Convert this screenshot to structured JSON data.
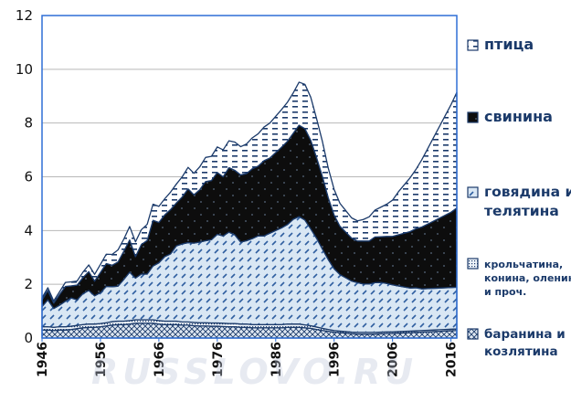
{
  "watermark": "RUSSLOVO.RU",
  "colors": {
    "frame": "#2f6fd6",
    "grid": "#b8b8b8",
    "outline": "#1b3a6a",
    "pork": "#0d0d0d",
    "poultry_bg": "#ffffff",
    "beef_bg": "#d9e7f4",
    "other_bg": "#eef4fa",
    "lamb_bg": "#dfe8f2"
  },
  "chart_data": {
    "type": "area",
    "stacked": true,
    "xlim": [
      1946,
      2017
    ],
    "ylim": [
      0,
      12
    ],
    "yticks": [
      0,
      2,
      4,
      6,
      8,
      10,
      12
    ],
    "xticks": [
      1946,
      1956,
      1966,
      1976,
      1986,
      1996,
      2006,
      2016
    ],
    "grid": "horizontal",
    "legend_position": "right",
    "x": [
      1946,
      1947,
      1948,
      1949,
      1950,
      1951,
      1952,
      1953,
      1954,
      1955,
      1956,
      1957,
      1958,
      1959,
      1960,
      1961,
      1962,
      1963,
      1964,
      1965,
      1966,
      1967,
      1968,
      1969,
      1970,
      1971,
      1972,
      1973,
      1974,
      1975,
      1976,
      1977,
      1978,
      1979,
      1980,
      1981,
      1982,
      1983,
      1984,
      1985,
      1986,
      1987,
      1988,
      1989,
      1990,
      1991,
      1992,
      1993,
      1994,
      1995,
      1996,
      1997,
      1998,
      1999,
      2000,
      2001,
      2002,
      2003,
      2004,
      2005,
      2006,
      2007,
      2008,
      2009,
      2010,
      2011,
      2012,
      2013,
      2014,
      2015,
      2016,
      2017
    ],
    "series": [
      {
        "name": "баранина и козлятина",
        "pattern": "crosshatch",
        "values": [
          0.3,
          0.3,
          0.28,
          0.3,
          0.3,
          0.32,
          0.35,
          0.38,
          0.4,
          0.4,
          0.42,
          0.45,
          0.48,
          0.5,
          0.5,
          0.52,
          0.55,
          0.55,
          0.55,
          0.55,
          0.52,
          0.5,
          0.5,
          0.5,
          0.48,
          0.48,
          0.46,
          0.45,
          0.45,
          0.44,
          0.44,
          0.43,
          0.42,
          0.42,
          0.4,
          0.4,
          0.38,
          0.38,
          0.38,
          0.38,
          0.38,
          0.38,
          0.4,
          0.4,
          0.4,
          0.38,
          0.36,
          0.32,
          0.28,
          0.25,
          0.22,
          0.2,
          0.18,
          0.16,
          0.15,
          0.15,
          0.15,
          0.15,
          0.16,
          0.17,
          0.17,
          0.18,
          0.19,
          0.2,
          0.21,
          0.22,
          0.23,
          0.24,
          0.25,
          0.26,
          0.27,
          0.28
        ]
      },
      {
        "name": "крольчатина, конина, оленина и проч.",
        "pattern": "dense-dots",
        "values": [
          0.12,
          0.12,
          0.12,
          0.12,
          0.12,
          0.12,
          0.12,
          0.12,
          0.12,
          0.12,
          0.12,
          0.12,
          0.13,
          0.13,
          0.13,
          0.13,
          0.13,
          0.13,
          0.13,
          0.13,
          0.13,
          0.13,
          0.13,
          0.13,
          0.12,
          0.12,
          0.12,
          0.12,
          0.12,
          0.12,
          0.12,
          0.12,
          0.12,
          0.12,
          0.12,
          0.12,
          0.12,
          0.12,
          0.12,
          0.12,
          0.12,
          0.12,
          0.12,
          0.12,
          0.12,
          0.11,
          0.1,
          0.09,
          0.08,
          0.07,
          0.06,
          0.06,
          0.06,
          0.06,
          0.06,
          0.06,
          0.06,
          0.06,
          0.06,
          0.06,
          0.06,
          0.06,
          0.06,
          0.06,
          0.06,
          0.06,
          0.06,
          0.06,
          0.06,
          0.06,
          0.06,
          0.06
        ]
      },
      {
        "name": "говядина и телятина",
        "pattern": "diagonal-dashes",
        "values": [
          0.75,
          1.0,
          0.7,
          0.8,
          0.95,
          1.05,
          0.95,
          1.15,
          1.25,
          1.05,
          1.15,
          1.35,
          1.3,
          1.3,
          1.55,
          1.8,
          1.55,
          1.7,
          1.7,
          2.0,
          2.15,
          2.4,
          2.5,
          2.8,
          2.9,
          2.95,
          2.95,
          3.0,
          3.05,
          3.1,
          3.3,
          3.25,
          3.4,
          3.3,
          3.05,
          3.1,
          3.2,
          3.3,
          3.3,
          3.4,
          3.5,
          3.6,
          3.7,
          3.9,
          4.0,
          3.9,
          3.6,
          3.3,
          2.95,
          2.6,
          2.3,
          2.1,
          2.0,
          1.9,
          1.85,
          1.8,
          1.8,
          1.85,
          1.85,
          1.8,
          1.75,
          1.7,
          1.65,
          1.6,
          1.6,
          1.55,
          1.55,
          1.55,
          1.55,
          1.55,
          1.55,
          1.55
        ]
      },
      {
        "name": "свинина",
        "pattern": "solid-black",
        "values": [
          0.25,
          0.35,
          0.2,
          0.4,
          0.55,
          0.45,
          0.55,
          0.6,
          0.7,
          0.55,
          0.75,
          0.85,
          0.8,
          0.9,
          1.05,
          1.2,
          0.8,
          1.1,
          1.25,
          1.7,
          1.5,
          1.55,
          1.65,
          1.6,
          1.75,
          2.0,
          1.8,
          1.95,
          2.2,
          2.2,
          2.3,
          2.2,
          2.4,
          2.4,
          2.5,
          2.5,
          2.6,
          2.6,
          2.8,
          2.8,
          2.9,
          3.0,
          3.1,
          3.2,
          3.4,
          3.4,
          3.3,
          3.0,
          2.7,
          2.3,
          2.0,
          1.8,
          1.7,
          1.6,
          1.55,
          1.6,
          1.6,
          1.7,
          1.7,
          1.75,
          1.8,
          1.9,
          2.0,
          2.1,
          2.2,
          2.3,
          2.4,
          2.5,
          2.6,
          2.7,
          2.8,
          2.95
        ]
      },
      {
        "name": "птица",
        "pattern": "horizontal-dashes",
        "values": [
          0.08,
          0.1,
          0.08,
          0.1,
          0.15,
          0.15,
          0.15,
          0.2,
          0.25,
          0.25,
          0.3,
          0.35,
          0.4,
          0.45,
          0.45,
          0.5,
          0.55,
          0.55,
          0.6,
          0.6,
          0.6,
          0.6,
          0.65,
          0.7,
          0.75,
          0.8,
          0.8,
          0.85,
          0.9,
          0.9,
          0.95,
          1.0,
          1.0,
          1.05,
          1.05,
          1.1,
          1.15,
          1.2,
          1.25,
          1.3,
          1.35,
          1.4,
          1.45,
          1.5,
          1.6,
          1.65,
          1.6,
          1.45,
          1.3,
          1.1,
          0.95,
          0.85,
          0.8,
          0.75,
          0.75,
          0.8,
          0.9,
          1.0,
          1.1,
          1.2,
          1.35,
          1.6,
          1.8,
          2.0,
          2.2,
          2.5,
          2.8,
          3.1,
          3.4,
          3.7,
          4.0,
          4.3
        ]
      }
    ]
  },
  "legend": [
    {
      "key": "poultry",
      "label_lines": [
        "птица"
      ],
      "pattern": "horizontal-dashes"
    },
    {
      "key": "pork",
      "label_lines": [
        "свинина"
      ],
      "pattern": "solid-black"
    },
    {
      "key": "beef",
      "label_lines": [
        "говядина и",
        "телятина"
      ],
      "pattern": "diagonal-dashes"
    },
    {
      "key": "other",
      "label_lines": [
        "крольчатина,",
        "конина, оленина",
        "и проч."
      ],
      "pattern": "dense-dots"
    },
    {
      "key": "lamb",
      "label_lines": [
        "баранина и",
        "козлятина"
      ],
      "pattern": "crosshatch"
    }
  ]
}
